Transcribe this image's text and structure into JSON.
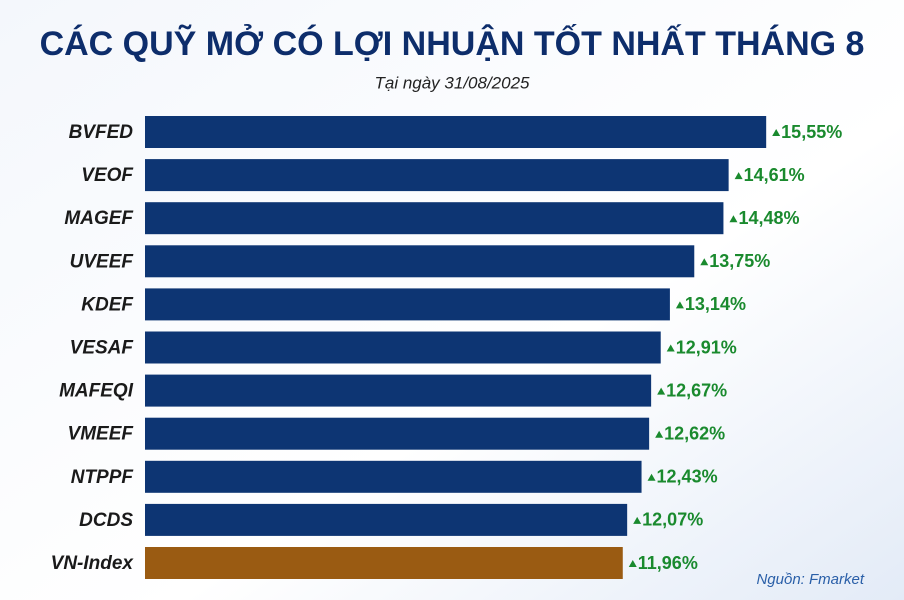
{
  "chart_data": {
    "type": "bar",
    "orientation": "horizontal",
    "title": "CÁC QUỸ MỞ CÓ LỢI NHUẬN TỐT NHẤT THÁNG 8",
    "subtitle": "Tại ngày 31/08/2025",
    "source": "Nguồn: Fmarket",
    "categories": [
      "BVFED",
      "VEOF",
      "MAGEF",
      "UVEEF",
      "KDEF",
      "VESAF",
      "MAFEQI",
      "VMEEF",
      "NTPPF",
      "DCDS",
      "VN-Index"
    ],
    "values": [
      15.55,
      14.61,
      14.48,
      13.75,
      13.14,
      12.91,
      12.67,
      12.62,
      12.43,
      12.07,
      11.96
    ],
    "value_labels": [
      "15,55%",
      "14,61%",
      "14,48%",
      "13,75%",
      "13,14%",
      "12,91%",
      "12,67%",
      "12,62%",
      "12,43%",
      "12,07%",
      "11,96%"
    ],
    "colors": [
      "#0d3573",
      "#0d3573",
      "#0d3573",
      "#0d3573",
      "#0d3573",
      "#0d3573",
      "#0d3573",
      "#0d3573",
      "#0d3573",
      "#0d3573",
      "#9a5b12"
    ],
    "xlim": [
      0,
      19
    ]
  }
}
